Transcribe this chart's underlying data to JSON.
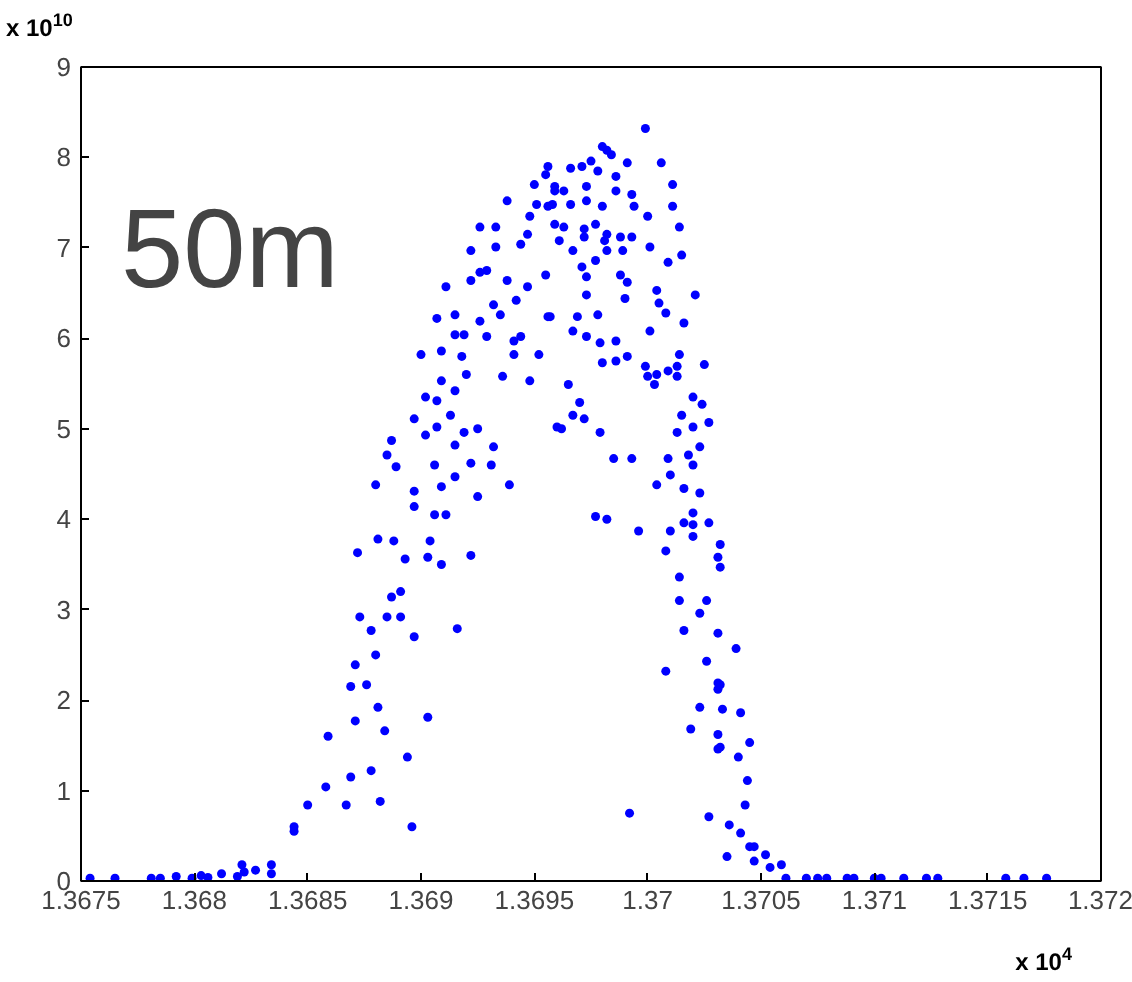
{
  "chart_data": {
    "type": "scatter",
    "annotations": [
      "50m",
      "x 10$^{10}$",
      "x 10$^{4}$"
    ],
    "xlim": [
      1.3675,
      1.372
    ],
    "xticks": [
      1.3675,
      1.368,
      1.3685,
      1.369,
      1.3695,
      1.37,
      1.3705,
      1.371,
      1.3715,
      1.372
    ],
    "ylim": [
      0,
      9
    ],
    "yticks": [
      0,
      1,
      2,
      3,
      4,
      5,
      6,
      7,
      8,
      9
    ],
    "grid": false,
    "marker": "circle",
    "series": [
      {
        "color": "#0000ff",
        "x": [
          1.36754,
          1.36765,
          1.36781,
          1.36785,
          1.36792,
          1.36799,
          1.36803,
          1.36806,
          1.36812,
          1.36819,
          1.36822,
          1.36827,
          1.36834,
          1.36821,
          1.36834,
          1.36844,
          1.36844,
          1.3685,
          1.36858,
          1.36867,
          1.36859,
          1.36869,
          1.36871,
          1.36878,
          1.36882,
          1.36869,
          1.36876,
          1.36881,
          1.36884,
          1.36871,
          1.3688,
          1.36873,
          1.36878,
          1.36885,
          1.36891,
          1.36887,
          1.36891,
          1.36894,
          1.36896,
          1.36903,
          1.36897,
          1.36916,
          1.36872,
          1.36881,
          1.36888,
          1.36893,
          1.36903,
          1.36909,
          1.36904,
          1.36922,
          1.3688,
          1.36885,
          1.36889,
          1.36897,
          1.36897,
          1.36906,
          1.36911,
          1.36909,
          1.36915,
          1.36906,
          1.36922,
          1.36925,
          1.36931,
          1.36932,
          1.36939,
          1.36887,
          1.36897,
          1.36902,
          1.36907,
          1.36915,
          1.36919,
          1.36925,
          1.36902,
          1.36907,
          1.36913,
          1.369,
          1.36909,
          1.3692,
          1.36918,
          1.36909,
          1.36915,
          1.36907,
          1.36915,
          1.36915,
          1.36919,
          1.36926,
          1.36929,
          1.36911,
          1.36922,
          1.36926,
          1.36932,
          1.36935,
          1.36941,
          1.36944,
          1.36941,
          1.36936,
          1.36948,
          1.36952,
          1.36947,
          1.36942,
          1.36938,
          1.36933,
          1.36938,
          1.36926,
          1.36922,
          1.36929,
          1.36933,
          1.36944,
          1.36947,
          1.36948,
          1.36951,
          1.3695,
          1.36955,
          1.36956,
          1.36959,
          1.36956,
          1.36955,
          1.36957,
          1.3696,
          1.36966,
          1.36971,
          1.36975,
          1.3698,
          1.36982,
          1.36984,
          1.36991,
          1.36999,
          1.37006,
          1.37011,
          1.37011,
          1.36959,
          1.36963,
          1.36973,
          1.36978,
          1.36986,
          1.36993,
          1.36958,
          1.36966,
          1.36973,
          1.3698,
          1.36986,
          1.36994,
          1.36959,
          1.36963,
          1.36972,
          1.36977,
          1.36982,
          1.36988,
          1.36993,
          1.37,
          1.37014,
          1.36961,
          1.36972,
          1.36981,
          1.36967,
          1.36971,
          1.36977,
          1.36982,
          1.36989,
          1.37001,
          1.37009,
          1.37015,
          1.36973,
          1.36988,
          1.36991,
          1.36973,
          1.37004,
          1.37021,
          1.3699,
          1.37005,
          1.37008,
          1.36978,
          1.36956,
          1.36969,
          1.37016,
          1.36967,
          1.37001,
          1.36973,
          1.36979,
          1.36986,
          1.36991,
          1.36986,
          1.3698,
          1.37014,
          1.36999,
          1.37,
          1.37004,
          1.37009,
          1.37013,
          1.37013,
          1.37025,
          1.37003,
          1.36965,
          1.3697,
          1.36967,
          1.36972,
          1.36962,
          1.36979,
          1.3702,
          1.37024,
          1.37015,
          1.3702,
          1.37027,
          1.37013,
          1.37023,
          1.37018,
          1.3702,
          1.36985,
          1.36993,
          1.37009,
          1.3701,
          1.37004,
          1.37016,
          1.37023,
          1.36977,
          1.36982,
          1.36996,
          1.3701,
          1.37016,
          1.3702,
          1.3702,
          1.37027,
          1.3702,
          1.37032,
          1.37008,
          1.37031,
          1.37032,
          1.37014,
          1.37014,
          1.37026,
          1.37023,
          1.37016,
          1.37031,
          1.37039,
          1.37026,
          1.37008,
          1.37031,
          1.37031,
          1.37032,
          1.37023,
          1.37033,
          1.37041,
          1.37019,
          1.37031,
          1.37045,
          1.37031,
          1.37032,
          1.3704,
          1.37044,
          1.37043,
          1.36992,
          1.37027,
          1.37036,
          1.37041,
          1.37045,
          1.37047,
          1.37035,
          1.37047,
          1.37052,
          1.37054,
          1.37059,
          1.37061,
          1.3707,
          1.37075,
          1.37079,
          1.37088,
          1.37091,
          1.371,
          1.37103,
          1.37113,
          1.37123,
          1.37128,
          1.37158,
          1.37166,
          1.37176
        ],
        "values": [
          0.03,
          0.03,
          0.03,
          0.03,
          0.05,
          0.03,
          0.06,
          0.04,
          0.08,
          0.05,
          0.1,
          0.12,
          0.08,
          0.18,
          0.18,
          0.6,
          0.55,
          0.84,
          1.04,
          0.84,
          1.6,
          1.15,
          1.77,
          1.22,
          0.88,
          2.15,
          2.17,
          1.92,
          1.66,
          2.39,
          2.5,
          2.92,
          2.77,
          2.92,
          2.92,
          3.14,
          3.2,
          1.37,
          0.6,
          1.81,
          2.7,
          2.79,
          3.63,
          3.78,
          3.76,
          3.56,
          3.58,
          3.5,
          3.76,
          3.6,
          4.38,
          4.71,
          4.58,
          4.31,
          4.14,
          4.05,
          4.05,
          4.36,
          4.47,
          4.6,
          4.62,
          4.25,
          4.6,
          4.8,
          4.38,
          4.87,
          5.11,
          4.93,
          5.02,
          4.82,
          4.96,
          5.0,
          5.35,
          5.31,
          5.15,
          5.82,
          5.86,
          5.6,
          5.8,
          5.53,
          5.42,
          6.22,
          6.26,
          6.04,
          6.04,
          6.19,
          6.02,
          6.57,
          6.64,
          6.73,
          6.37,
          6.26,
          5.97,
          6.02,
          5.82,
          5.58,
          5.53,
          5.82,
          6.57,
          6.42,
          6.64,
          7.23,
          7.52,
          7.23,
          6.97,
          6.75,
          7.01,
          7.04,
          7.15,
          7.35,
          7.48,
          7.7,
          7.81,
          7.9,
          7.63,
          7.46,
          6.7,
          6.24,
          5.02,
          7.88,
          7.9,
          7.96,
          8.12,
          8.08,
          8.03,
          7.94,
          8.32,
          7.94,
          7.7,
          7.46,
          7.68,
          7.63,
          7.68,
          7.85,
          7.79,
          7.59,
          7.48,
          7.48,
          7.52,
          7.46,
          7.63,
          7.46,
          7.26,
          7.23,
          7.21,
          7.26,
          7.15,
          7.12,
          7.12,
          7.35,
          7.23,
          7.08,
          7.12,
          7.08,
          6.97,
          6.79,
          6.86,
          6.97,
          6.97,
          7.01,
          6.84,
          6.92,
          6.68,
          6.7,
          6.62,
          6.48,
          6.53,
          6.48,
          6.44,
          6.39,
          6.28,
          6.26,
          6.24,
          6.24,
          6.17,
          6.08,
          6.08,
          6.02,
          5.95,
          5.97,
          5.8,
          5.75,
          5.73,
          5.82,
          5.69,
          5.58,
          5.6,
          5.64,
          5.69,
          5.58,
          5.71,
          5.49,
          5.49,
          5.29,
          5.15,
          5.11,
          5.0,
          4.96,
          5.35,
          5.27,
          5.15,
          5.02,
          5.07,
          4.96,
          4.8,
          4.71,
          4.6,
          4.67,
          4.67,
          4.67,
          4.49,
          4.38,
          4.34,
          4.29,
          4.03,
          4.0,
          3.87,
          3.87,
          3.96,
          3.94,
          4.07,
          3.96,
          3.81,
          3.72,
          3.65,
          3.58,
          3.47,
          3.36,
          3.1,
          3.1,
          2.96,
          2.77,
          2.74,
          2.57,
          2.43,
          2.32,
          2.19,
          2.12,
          2.17,
          1.92,
          1.9,
          1.86,
          1.68,
          1.62,
          1.53,
          1.46,
          1.48,
          1.37,
          1.11,
          0.84,
          0.75,
          0.71,
          0.62,
          0.53,
          0.38,
          0.38,
          0.27,
          0.22,
          0.29,
          0.15,
          0.18,
          0.03,
          0.03,
          0.03,
          0.03,
          0.03,
          0.03,
          0.03,
          0.03,
          0.03,
          0.03,
          0.03,
          0.03,
          0.03,
          0.03
        ]
      }
    ]
  }
}
